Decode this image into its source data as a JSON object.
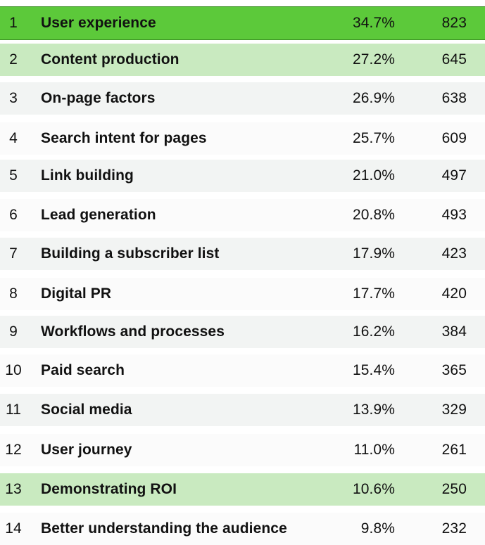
{
  "chart_data": {
    "type": "table",
    "columns": [
      "rank",
      "label",
      "percent",
      "count"
    ],
    "rows": [
      {
        "rank": "1",
        "label": "User experience",
        "percent": "34.7%",
        "count": "823",
        "highlight": "strong"
      },
      {
        "rank": "2",
        "label": "Content production",
        "percent": "27.2%",
        "count": "645",
        "highlight": "light"
      },
      {
        "rank": "3",
        "label": "On-page factors",
        "percent": "26.9%",
        "count": "638",
        "highlight": "stripe"
      },
      {
        "rank": "4",
        "label": "Search intent for pages",
        "percent": "25.7%",
        "count": "609",
        "highlight": "plain"
      },
      {
        "rank": "5",
        "label": "Link building",
        "percent": "21.0%",
        "count": "497",
        "highlight": "stripe"
      },
      {
        "rank": "6",
        "label": "Lead generation",
        "percent": "20.8%",
        "count": "493",
        "highlight": "plain"
      },
      {
        "rank": "7",
        "label": "Building a subscriber list",
        "percent": "17.9%",
        "count": "423",
        "highlight": "stripe"
      },
      {
        "rank": "8",
        "label": "Digital PR",
        "percent": "17.7%",
        "count": "420",
        "highlight": "plain"
      },
      {
        "rank": "9",
        "label": "Workflows and processes",
        "percent": "16.2%",
        "count": "384",
        "highlight": "stripe"
      },
      {
        "rank": "10",
        "label": "Paid search",
        "percent": "15.4%",
        "count": "365",
        "highlight": "plain"
      },
      {
        "rank": "11",
        "label": "Social media",
        "percent": "13.9%",
        "count": "329",
        "highlight": "stripe"
      },
      {
        "rank": "12",
        "label": "User journey",
        "percent": "11.0%",
        "count": "261",
        "highlight": "plain"
      },
      {
        "rank": "13",
        "label": "Demonstrating ROI",
        "percent": "10.6%",
        "count": "250",
        "highlight": "light"
      },
      {
        "rank": "14",
        "label": "Better understanding the audience",
        "percent": "9.8%",
        "count": "232",
        "highlight": "plain"
      }
    ],
    "colors": {
      "strong_highlight": "#5cc93a",
      "light_highlight": "#c9eac0",
      "stripe": "#f2f4f3"
    }
  }
}
